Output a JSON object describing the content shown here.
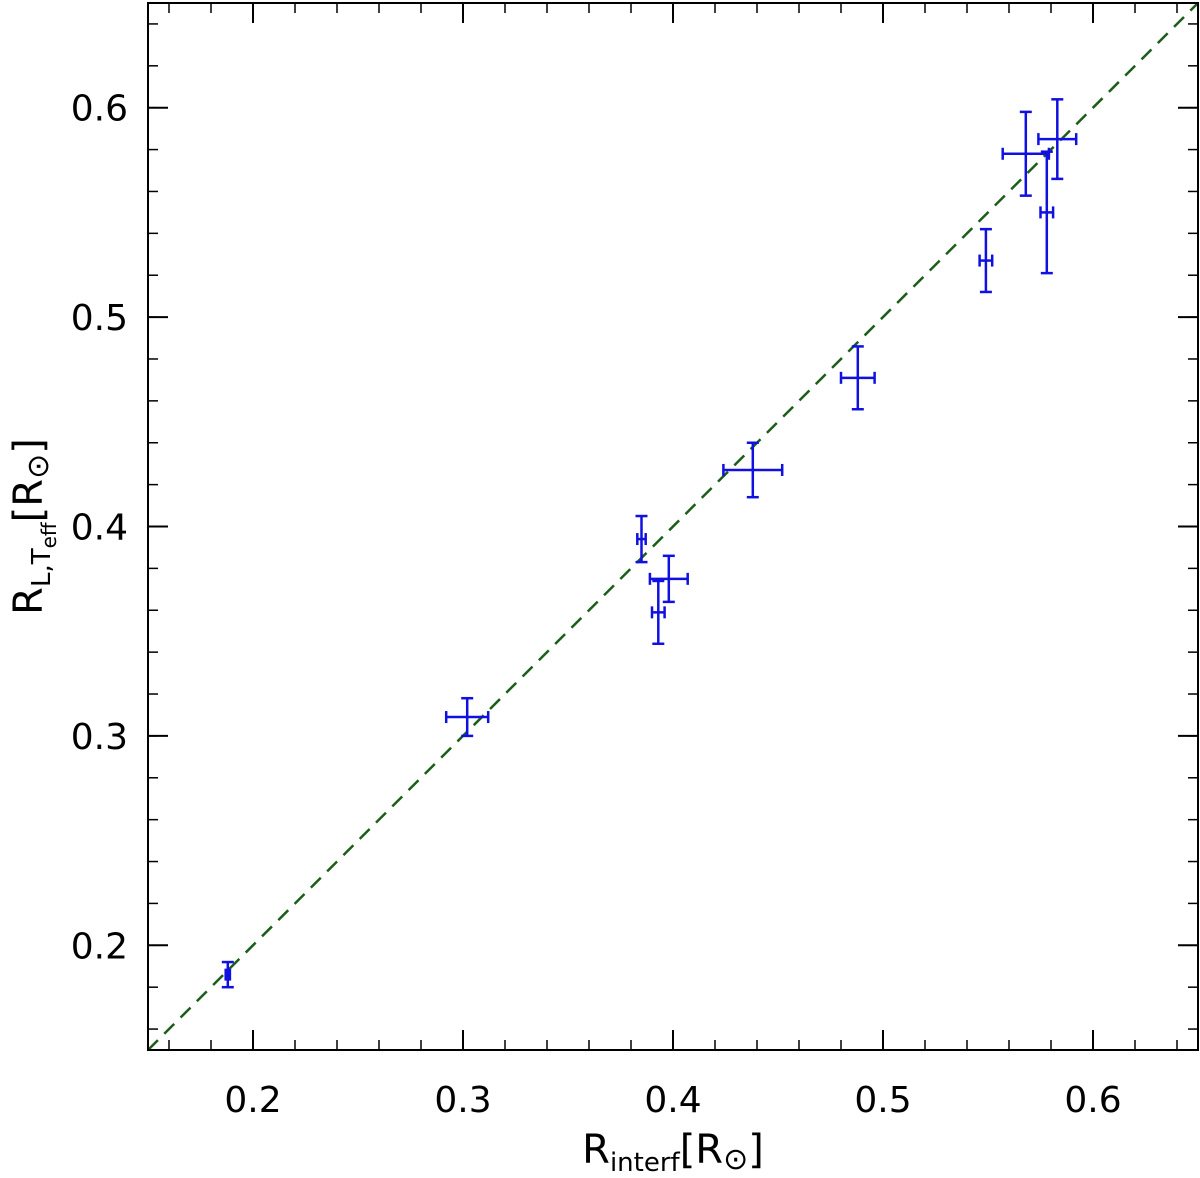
{
  "chart_data": {
    "type": "scatter",
    "xlabel": {
      "main": "R",
      "sub": "interf",
      "unit": "[R",
      "unit_sym": "⊙",
      "unit_close": "]"
    },
    "ylabel": {
      "main": "R",
      "sub": "L,T",
      "subsub": "eff",
      "unit": "[R",
      "unit_sym": "⊙",
      "unit_close": "]"
    },
    "xlim": [
      0.15,
      0.65
    ],
    "ylim": [
      0.15,
      0.65
    ],
    "xticks": [
      0.2,
      0.3,
      0.4,
      0.5,
      0.6
    ],
    "yticks": [
      0.2,
      0.3,
      0.4,
      0.5,
      0.6
    ],
    "xtick_labels": [
      "0.2",
      "0.3",
      "0.4",
      "0.5",
      "0.6"
    ],
    "ytick_labels": [
      "0.2",
      "0.3",
      "0.4",
      "0.5",
      "0.6"
    ],
    "minor_step": 0.02,
    "grid": false,
    "reference_line": {
      "style": "dashed",
      "color": "#1a5e1a",
      "from": [
        0.15,
        0.15
      ],
      "to": [
        0.65,
        0.65
      ]
    },
    "series": [
      {
        "color": "#1010e0",
        "points": [
          {
            "x": 0.188,
            "y": 0.186,
            "xerr": 0.001,
            "yerr": 0.006
          },
          {
            "x": 0.302,
            "y": 0.309,
            "xerr": 0.01,
            "yerr": 0.009
          },
          {
            "x": 0.385,
            "y": 0.394,
            "xerr": 0.002,
            "yerr": 0.011
          },
          {
            "x": 0.398,
            "y": 0.375,
            "xerr": 0.009,
            "yerr": 0.011
          },
          {
            "x": 0.393,
            "y": 0.359,
            "xerr": 0.003,
            "yerr": 0.015
          },
          {
            "x": 0.438,
            "y": 0.427,
            "xerr": 0.014,
            "yerr": 0.013
          },
          {
            "x": 0.488,
            "y": 0.471,
            "xerr": 0.008,
            "yerr": 0.015
          },
          {
            "x": 0.549,
            "y": 0.527,
            "xerr": 0.003,
            "yerr": 0.015
          },
          {
            "x": 0.568,
            "y": 0.578,
            "xerr": 0.011,
            "yerr": 0.02
          },
          {
            "x": 0.578,
            "y": 0.55,
            "xerr": 0.003,
            "yerr": 0.029
          },
          {
            "x": 0.583,
            "y": 0.585,
            "xerr": 0.009,
            "yerr": 0.019
          }
        ]
      }
    ]
  }
}
